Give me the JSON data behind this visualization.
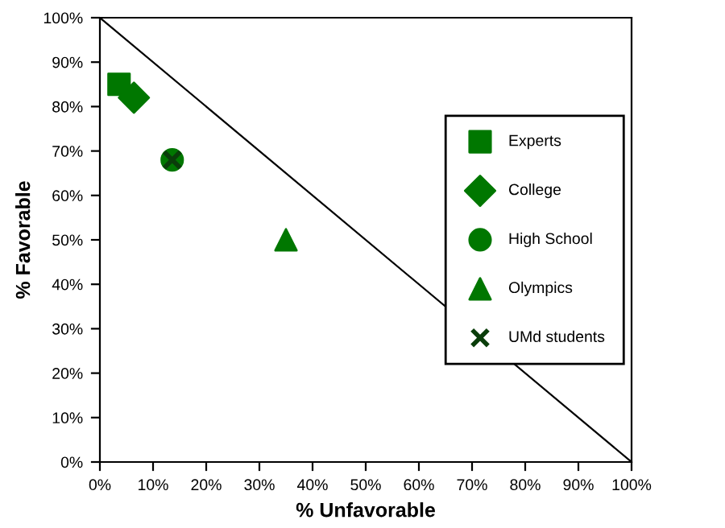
{
  "chart_data": {
    "type": "scatter",
    "xlabel": "% Unfavorable",
    "ylabel": "% Favorable",
    "xlim": [
      0,
      100
    ],
    "ylim": [
      0,
      100
    ],
    "xticks": [
      {
        "value": 0,
        "label": "0%"
      },
      {
        "value": 10,
        "label": "10%"
      },
      {
        "value": 20,
        "label": "20%"
      },
      {
        "value": 30,
        "label": "30%"
      },
      {
        "value": 40,
        "label": "40%"
      },
      {
        "value": 50,
        "label": "50%"
      },
      {
        "value": 60,
        "label": "60%"
      },
      {
        "value": 70,
        "label": "70%"
      },
      {
        "value": 80,
        "label": "80%"
      },
      {
        "value": 90,
        "label": "90%"
      },
      {
        "value": 100,
        "label": "100%"
      }
    ],
    "yticks": [
      {
        "value": 0,
        "label": "0%"
      },
      {
        "value": 10,
        "label": "10%"
      },
      {
        "value": 20,
        "label": "20%"
      },
      {
        "value": 30,
        "label": "30%"
      },
      {
        "value": 40,
        "label": "40%"
      },
      {
        "value": 50,
        "label": "50%"
      },
      {
        "value": 60,
        "label": "60%"
      },
      {
        "value": 70,
        "label": "70%"
      },
      {
        "value": 80,
        "label": "80%"
      },
      {
        "value": 90,
        "label": "90%"
      },
      {
        "value": 100,
        "label": "100%"
      }
    ],
    "grid": false,
    "legend": "right",
    "series": [
      {
        "type": "line",
        "color": "#000000",
        "x": [
          0,
          100
        ],
        "values": [
          100,
          0
        ],
        "marker": "none"
      },
      {
        "name": "Experts",
        "color": "#007700",
        "x": [
          3.6
        ],
        "values": [
          85
        ],
        "marker": "square"
      },
      {
        "name": "College",
        "color": "#007700",
        "x": [
          6.4
        ],
        "values": [
          82
        ],
        "marker": "diamond"
      },
      {
        "name": "High School",
        "color": "#007700",
        "x": [
          13.6
        ],
        "values": [
          68
        ],
        "marker": "circle"
      },
      {
        "name": "Olympics",
        "color": "#007700",
        "x": [
          35
        ],
        "values": [
          50
        ],
        "marker": "triangle"
      },
      {
        "name": "UMd students",
        "color": "#0a3d0a",
        "x": [
          13.6
        ],
        "values": [
          68
        ],
        "marker": "cross"
      }
    ]
  }
}
